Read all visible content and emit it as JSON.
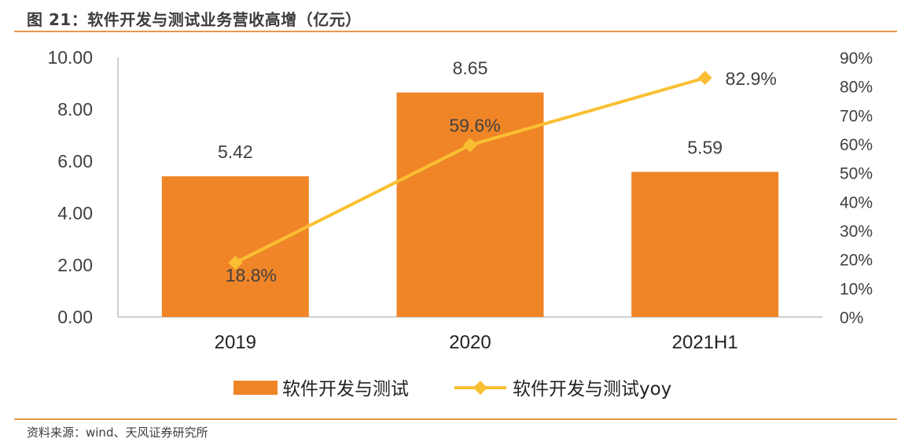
{
  "figure": {
    "title": "图 21：软件开发与测试业务营收高增（亿元）",
    "source": "资料来源：wind、天风证券研究所"
  },
  "colors": {
    "bar": "#f08528",
    "line": "#f9bf32",
    "rule": "#e59a4a",
    "axis": "#bfbfbf"
  },
  "chart_data": {
    "type": "bar",
    "title": "软件开发与测试业务营收高增（亿元）",
    "categories": [
      "2019",
      "2020",
      "2021H1"
    ],
    "series": [
      {
        "name": "软件开发与测试",
        "type": "bar",
        "axis": "left",
        "values": [
          5.42,
          8.65,
          5.59
        ],
        "labels": [
          "5.42",
          "8.65",
          "5.59"
        ]
      },
      {
        "name": "软件开发与测试yoy",
        "type": "line",
        "axis": "right",
        "marker": "diamond",
        "values": [
          18.8,
          59.6,
          82.9
        ],
        "labels": [
          "18.8%",
          "59.6%",
          "82.9%"
        ]
      }
    ],
    "ylim": [
      0,
      10
    ],
    "yticks": [
      "0.00",
      "2.00",
      "4.00",
      "6.00",
      "8.00",
      "10.00"
    ],
    "y2lim": [
      0,
      90
    ],
    "y2ticks": [
      "0%",
      "10%",
      "20%",
      "30%",
      "40%",
      "50%",
      "60%",
      "70%",
      "80%",
      "90%"
    ],
    "legend": {
      "position": "bottom",
      "items": [
        "软件开发与测试",
        "软件开发与测试yoy"
      ]
    }
  }
}
